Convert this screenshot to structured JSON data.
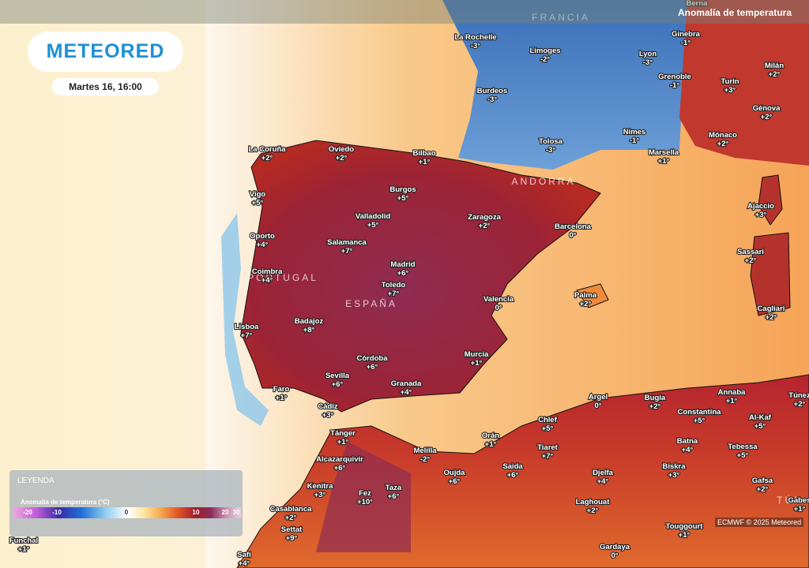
{
  "header": {
    "title": "Anomalía de temperatura",
    "brand": "METEORED",
    "datetime": "Martes 16, 16:00"
  },
  "countries": [
    "FRANCIA",
    "ANDORRA",
    "PORTUGAL",
    "ESPAÑA",
    "TÚN"
  ],
  "cities": [
    {
      "name": "Berna",
      "value": null
    },
    {
      "name": "Ginebra",
      "value": "-1°"
    },
    {
      "name": "La Rochelle",
      "value": "-3°"
    },
    {
      "name": "Limoges",
      "value": "-2°"
    },
    {
      "name": "Lyon",
      "value": "-3°"
    },
    {
      "name": "Milán",
      "value": "+2°"
    },
    {
      "name": "Grenoble",
      "value": "-1°"
    },
    {
      "name": "Turín",
      "value": "+3°"
    },
    {
      "name": "Burdeos",
      "value": "-3°"
    },
    {
      "name": "Génova",
      "value": "+2°"
    },
    {
      "name": "Nimes",
      "value": "-1°"
    },
    {
      "name": "Mónaco",
      "value": "+2°"
    },
    {
      "name": "Tolosa",
      "value": "-3°"
    },
    {
      "name": "Marsella",
      "value": "+1°"
    },
    {
      "name": "La Coruña",
      "value": "+2°"
    },
    {
      "name": "Oviedo",
      "value": "+2°"
    },
    {
      "name": "Bilbao",
      "value": "+1°"
    },
    {
      "name": "Burgos",
      "value": "+5°"
    },
    {
      "name": "Vigo",
      "value": "+5°"
    },
    {
      "name": "Ajaccio",
      "value": "+3°"
    },
    {
      "name": "Valladolid",
      "value": "+5°"
    },
    {
      "name": "Zaragoza",
      "value": "+2°"
    },
    {
      "name": "Barcelona",
      "value": "0°"
    },
    {
      "name": "Oporto",
      "value": "+4°"
    },
    {
      "name": "Salamanca",
      "value": "+7°"
    },
    {
      "name": "Sassari",
      "value": "+2°"
    },
    {
      "name": "Madrid",
      "value": "+6°"
    },
    {
      "name": "Coimbra",
      "value": "+4°"
    },
    {
      "name": "Toledo",
      "value": "+7°"
    },
    {
      "name": "Palma",
      "value": "+2°"
    },
    {
      "name": "Valencia",
      "value": "0°"
    },
    {
      "name": "Cagliari",
      "value": "+2°"
    },
    {
      "name": "Lisboa",
      "value": "+7°"
    },
    {
      "name": "Badajoz",
      "value": "+8°"
    },
    {
      "name": "Murcia",
      "value": "+1°"
    },
    {
      "name": "Córdoba",
      "value": "+6°"
    },
    {
      "name": "Sevilla",
      "value": "+6°"
    },
    {
      "name": "Granada",
      "value": "+4°"
    },
    {
      "name": "Faro",
      "value": "+1°"
    },
    {
      "name": "Cádiz",
      "value": "+3°"
    },
    {
      "name": "Annaba",
      "value": "+1°"
    },
    {
      "name": "Túnez",
      "value": "+2°"
    },
    {
      "name": "Argel",
      "value": "0°"
    },
    {
      "name": "Bugía",
      "value": "+2°"
    },
    {
      "name": "Constantina",
      "value": "+5°"
    },
    {
      "name": "Al-Kaf",
      "value": "+5°"
    },
    {
      "name": "Chlef",
      "value": "+5°"
    },
    {
      "name": "Tánger",
      "value": "+1°"
    },
    {
      "name": "Orán",
      "value": "+1°"
    },
    {
      "name": "Batna",
      "value": "+4°"
    },
    {
      "name": "Tiaret",
      "value": "+7°"
    },
    {
      "name": "Tebessa",
      "value": "+5°"
    },
    {
      "name": "Melilla",
      "value": "-2°"
    },
    {
      "name": "Alcazarquivir",
      "value": "+6°"
    },
    {
      "name": "Saida",
      "value": "+6°"
    },
    {
      "name": "Biskra",
      "value": "+3°"
    },
    {
      "name": "Oujda",
      "value": "+6°"
    },
    {
      "name": "Djelfa",
      "value": "+4°"
    },
    {
      "name": "Kenitra",
      "value": "+3°"
    },
    {
      "name": "Taza",
      "value": "+6°"
    },
    {
      "name": "Gafsa",
      "value": "+2°"
    },
    {
      "name": "Fez",
      "value": "+10°"
    },
    {
      "name": "Laghouat",
      "value": "+2°"
    },
    {
      "name": "Gabes",
      "value": "+1°"
    },
    {
      "name": "Casablanca",
      "value": "+2°"
    },
    {
      "name": "Settat",
      "value": "+9°"
    },
    {
      "name": "Touggourt",
      "value": "+1°"
    },
    {
      "name": "Funchal",
      "value": "+1°"
    },
    {
      "name": "Safi",
      "value": "+4°"
    },
    {
      "name": "Gardaya",
      "value": "0°"
    }
  ],
  "legend": {
    "title": "LEYENDA",
    "subtitle": "Anomalía de temperatura (°C)",
    "ticks": [
      -20,
      -10,
      0,
      10,
      20,
      30
    ]
  },
  "credit": "ECMWF © 2025 Meteored"
}
